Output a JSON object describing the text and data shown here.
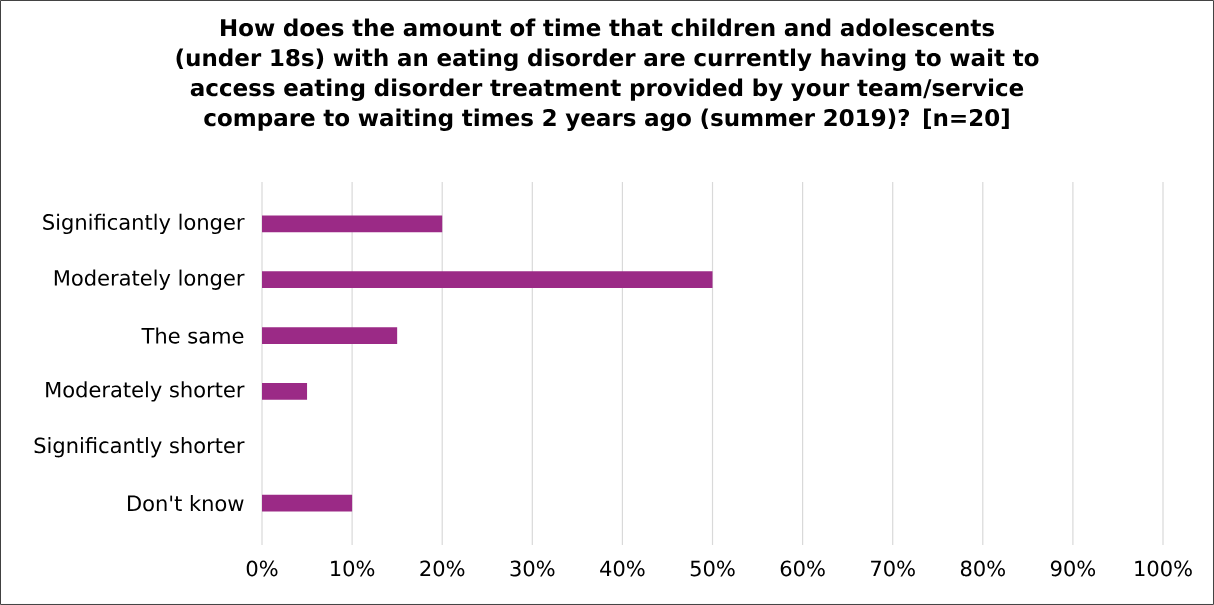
{
  "chart_data": {
    "type": "bar",
    "orientation": "horizontal",
    "title": "How does the amount of time that children and adolescents (under 18s) with an eating disorder are currently having to wait to access eating disorder treatment provided by your team/service compare to waiting times 2 years ago (summer 2019)? [n=20]",
    "categories": [
      "Significantly longer",
      "Moderately longer",
      "The same",
      "Moderately shorter",
      "Significantly shorter",
      "Don't know"
    ],
    "values": [
      20,
      50,
      15,
      5,
      0,
      10
    ],
    "color": "#9b2a86",
    "xlim": [
      0,
      100
    ],
    "xticks": [
      {
        "value": 0,
        "label": "0%"
      },
      {
        "value": 10,
        "label": "10%"
      },
      {
        "value": 20,
        "label": "20%"
      },
      {
        "value": 30,
        "label": "30%"
      },
      {
        "value": 40,
        "label": "40%"
      },
      {
        "value": 50,
        "label": "50%"
      },
      {
        "value": 60,
        "label": "60%"
      },
      {
        "value": 70,
        "label": "70%"
      },
      {
        "value": 80,
        "label": "80%"
      },
      {
        "value": 90,
        "label": "90%"
      },
      {
        "value": 100,
        "label": "100%"
      }
    ],
    "grid": "x"
  }
}
